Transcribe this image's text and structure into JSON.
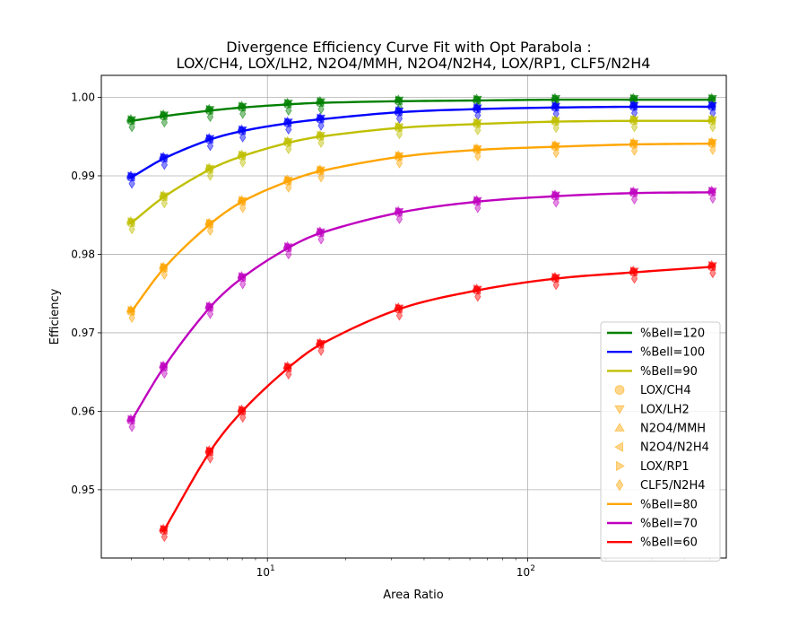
{
  "chart_data": {
    "type": "scatter",
    "title_line1": "Divergence Efficiency Curve Fit with Opt Parabola :",
    "title_line2": "LOX/CH4, LOX/LH2, N2O4/MMH, N2O4/N2H4, LOX/RP1, CLF5/N2H4",
    "xlabel": "Area Ratio",
    "ylabel": "Efficiency",
    "xscale": "log",
    "xlim": [
      2.3,
      580
    ],
    "ylim": [
      0.9413,
      1.0028
    ],
    "yticks": [
      "0.95",
      "0.96",
      "0.97",
      "0.98",
      "0.99",
      "1.00"
    ],
    "ytick_values": [
      0.95,
      0.96,
      0.97,
      0.98,
      0.99,
      1.0
    ],
    "xticks": [
      {
        "value": 10,
        "base": "10",
        "exp": "1"
      },
      {
        "value": 100,
        "base": "10",
        "exp": "2"
      }
    ],
    "grid": true,
    "legend_position": "lower-right",
    "fit_curves": [
      {
        "name": "%Bell=120",
        "color": "#008000",
        "x": [
          3,
          4,
          6,
          8,
          12,
          16,
          32,
          64,
          128,
          256,
          512
        ],
        "y": [
          0.997,
          0.9976,
          0.9983,
          0.9987,
          0.9991,
          0.9993,
          0.9995,
          0.9996,
          0.9997,
          0.9997,
          0.9997
        ]
      },
      {
        "name": "%Bell=100",
        "color": "#0000ff",
        "x": [
          3,
          4,
          6,
          8,
          12,
          16,
          32,
          64,
          128,
          256,
          512
        ],
        "y": [
          0.9898,
          0.9922,
          0.9946,
          0.9957,
          0.9967,
          0.9972,
          0.9981,
          0.9985,
          0.9987,
          0.9988,
          0.9988
        ]
      },
      {
        "name": "%Bell=90",
        "color": "#bfbf00",
        "x": [
          3,
          4,
          6,
          8,
          12,
          16,
          32,
          64,
          128,
          256,
          512
        ],
        "y": [
          0.984,
          0.9873,
          0.9908,
          0.9925,
          0.9942,
          0.995,
          0.9961,
          0.9966,
          0.9969,
          0.997,
          0.997
        ]
      },
      {
        "name": "%Bell=80",
        "color": "#ffa500",
        "x": [
          3,
          4,
          6,
          8,
          12,
          16,
          32,
          64,
          128,
          256,
          512
        ],
        "y": [
          0.9727,
          0.9782,
          0.9838,
          0.9867,
          0.9893,
          0.9906,
          0.9924,
          0.9933,
          0.9937,
          0.994,
          0.9941
        ]
      },
      {
        "name": "%Bell=70",
        "color": "#bf00bf",
        "x": [
          3,
          4,
          6,
          8,
          12,
          16,
          32,
          64,
          128,
          256,
          512
        ],
        "y": [
          0.9588,
          0.9656,
          0.9732,
          0.977,
          0.9808,
          0.9827,
          0.9853,
          0.9867,
          0.9874,
          0.9878,
          0.9879
        ]
      },
      {
        "name": "%Bell=60",
        "color": "#ff0000",
        "x": [
          4,
          6,
          8,
          12,
          16,
          32,
          64,
          128,
          256,
          512
        ],
        "y": [
          0.9448,
          0.9548,
          0.96,
          0.9655,
          0.9685,
          0.973,
          0.9754,
          0.9769,
          0.9777,
          0.9784
        ]
      }
    ],
    "propellants": [
      {
        "name": "LOX/CH4",
        "marker": "circle",
        "offset": 0.0
      },
      {
        "name": "LOX/LH2",
        "marker": "triangle-down",
        "offset": 0.0002
      },
      {
        "name": "N2O4/MMH",
        "marker": "triangle-up",
        "offset": 0.0003
      },
      {
        "name": "N2O4/N2H4",
        "marker": "triangle-left",
        "offset": 0.0
      },
      {
        "name": "LOX/RP1",
        "marker": "triangle-right",
        "offset": 0.0002
      },
      {
        "name": "CLF5/N2H4",
        "marker": "diamond",
        "offset": -0.0008
      }
    ],
    "legend_items": [
      {
        "kind": "line",
        "name": "%Bell=120",
        "color": "#008000"
      },
      {
        "kind": "line",
        "name": "%Bell=100",
        "color": "#0000ff"
      },
      {
        "kind": "line",
        "name": "%Bell=90",
        "color": "#bfbf00"
      },
      {
        "kind": "marker",
        "name": "LOX/CH4",
        "marker": "circle",
        "color": "#ffa500"
      },
      {
        "kind": "marker",
        "name": "LOX/LH2",
        "marker": "triangle-down",
        "color": "#ffa500"
      },
      {
        "kind": "marker",
        "name": "N2O4/MMH",
        "marker": "triangle-up",
        "color": "#ffa500"
      },
      {
        "kind": "marker",
        "name": "N2O4/N2H4",
        "marker": "triangle-left",
        "color": "#ffa500"
      },
      {
        "kind": "marker",
        "name": "LOX/RP1",
        "marker": "triangle-right",
        "color": "#ffa500"
      },
      {
        "kind": "marker",
        "name": "CLF5/N2H4",
        "marker": "diamond",
        "color": "#ffa500"
      },
      {
        "kind": "line",
        "name": "%Bell=80",
        "color": "#ffa500"
      },
      {
        "kind": "line",
        "name": "%Bell=70",
        "color": "#bf00bf"
      },
      {
        "kind": "line",
        "name": "%Bell=60",
        "color": "#ff0000"
      }
    ]
  }
}
